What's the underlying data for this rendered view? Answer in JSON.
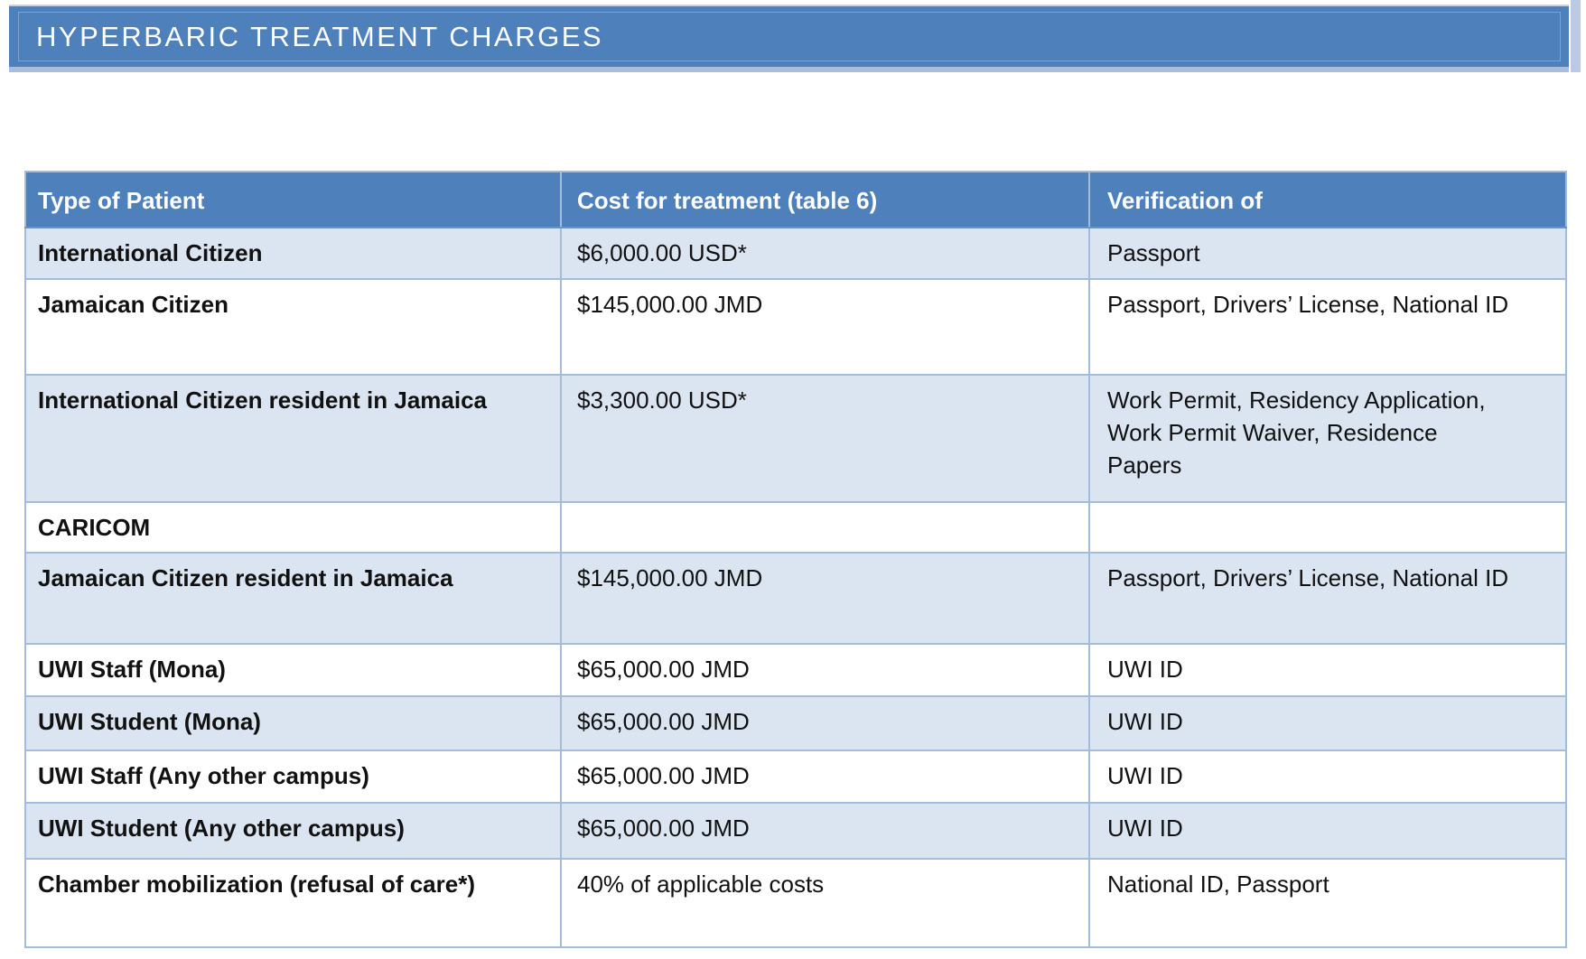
{
  "title": {
    "text": "HYPERBARIC TREATMENT CHARGES"
  },
  "table": {
    "columns": [
      "Type of Patient",
      "Cost for treatment (table 6)",
      "Verification of"
    ],
    "rows": [
      {
        "type": "International Citizen",
        "cost": "$6,000.00 USD*",
        "verification": "Passport"
      },
      {
        "type": "Jamaican Citizen",
        "cost": "$145,000.00 JMD",
        "verification": "Passport, Drivers’ License, National ID"
      },
      {
        "type": "International Citizen resident in Jamaica",
        "cost": "$3,300.00 USD*",
        "verification": "Work Permit, Residency Application, Work Permit Waiver, Residence Papers"
      },
      {
        "type": "CARICOM",
        "cost": "",
        "verification": ""
      },
      {
        "type": "Jamaican Citizen resident in Jamaica",
        "cost": "$145,000.00 JMD",
        "verification": "Passport, Drivers’ License, National ID"
      },
      {
        "type": "UWI Staff (Mona)",
        "cost": "$65,000.00 JMD",
        "verification": "UWI ID"
      },
      {
        "type": "UWI Student (Mona)",
        "cost": "$65,000.00 JMD",
        "verification": "UWI ID"
      },
      {
        "type": "UWI Staff (Any other campus)",
        "cost": "$65,000.00 JMD",
        "verification": "UWI ID"
      },
      {
        "type": "UWI Student (Any other campus)",
        "cost": "$65,000.00 JMD",
        "verification": "UWI ID"
      },
      {
        "type": "Chamber mobilization (refusal of care*)",
        "cost": "40% of applicable costs",
        "verification": "National ID, Passport"
      }
    ]
  },
  "colors": {
    "accent_blue": "#4e80bc",
    "row_alt_blue": "#dbe4f1",
    "table_border": "#a3bcdc",
    "title_text": "#ffffff",
    "body_text": "#111111"
  }
}
